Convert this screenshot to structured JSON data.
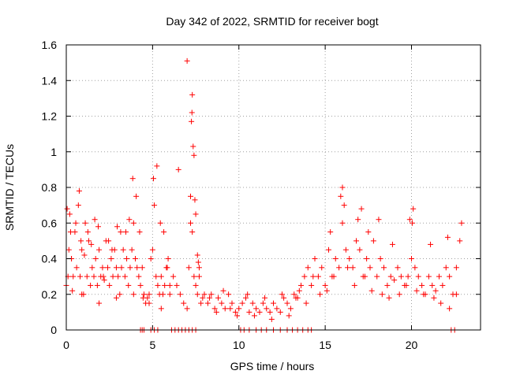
{
  "chart_data": {
    "type": "scatter",
    "title": "Day 342 of 2022, SRMTID for receiver bogt",
    "xlabel": "GPS time / hours",
    "ylabel": "SRMTID / TECUs",
    "xlim": [
      0,
      24
    ],
    "ylim": [
      0,
      1.6
    ],
    "xticks": [
      0,
      5,
      10,
      15,
      20
    ],
    "xtick_labels": [
      "0",
      "5",
      "10",
      "15",
      "20"
    ],
    "yticks": [
      0,
      0.2,
      0.4,
      0.6,
      0.8,
      1.0,
      1.2,
      1.4,
      1.6
    ],
    "ytick_labels": [
      "0",
      "0.2",
      "0.4",
      "0.6",
      "0.8",
      "1",
      "1.2",
      "1.4",
      "1.6"
    ],
    "grid": true,
    "marker": "plus",
    "color": "#ff0000",
    "series": [
      {
        "name": "SRMTID",
        "x": [
          0.0,
          0.1,
          0.2,
          0.3,
          0.4,
          0.5,
          0.6,
          0.7,
          0.8,
          0.9,
          1.0,
          1.1,
          1.2,
          1.3,
          1.4,
          1.5,
          1.6,
          1.7,
          1.8,
          1.9,
          2.0,
          2.1,
          2.2,
          2.3,
          2.4,
          2.5,
          2.6,
          2.7,
          2.8,
          2.9,
          3.0,
          3.1,
          3.2,
          3.3,
          3.4,
          3.5,
          3.6,
          3.7,
          3.8,
          3.9,
          4.0,
          4.1,
          4.2,
          4.3,
          4.4,
          4.5,
          4.6,
          4.7,
          4.8,
          4.9,
          5.0,
          5.1,
          5.2,
          5.3,
          5.4,
          5.5,
          5.6,
          5.7,
          5.8,
          5.9,
          6.0,
          6.2,
          6.4,
          6.6,
          6.8,
          7.0,
          7.1,
          7.2,
          7.3,
          7.4,
          7.5,
          7.6,
          7.7,
          7.8,
          7.9,
          8.0,
          8.2,
          8.4,
          8.6,
          8.8,
          9.0,
          9.2,
          9.4,
          9.6,
          9.8,
          10.0,
          10.2,
          10.4,
          10.6,
          10.8,
          11.0,
          11.2,
          11.4,
          11.6,
          11.8,
          12.0,
          12.2,
          12.4,
          12.6,
          12.8,
          13.0,
          13.2,
          13.4,
          13.6,
          13.8,
          14.0,
          14.2,
          14.4,
          14.6,
          14.8,
          15.0,
          15.2,
          15.4,
          15.6,
          15.8,
          16.0,
          16.2,
          16.4,
          16.6,
          16.8,
          17.0,
          17.2,
          17.4,
          17.6,
          17.8,
          18.0,
          18.2,
          18.4,
          18.6,
          18.8,
          19.0,
          19.2,
          19.4,
          19.6,
          19.8,
          20.0,
          20.2,
          20.4,
          20.6,
          20.8,
          21.0,
          21.2,
          21.4,
          21.6,
          21.8,
          22.0,
          22.2,
          22.4,
          22.6,
          22.8,
          0.05,
          0.15,
          0.25,
          0.35,
          0.55,
          0.75,
          0.85,
          1.05,
          1.25,
          1.45,
          1.65,
          1.85,
          2.15,
          2.45,
          2.65,
          2.95,
          3.15,
          3.45,
          3.65,
          3.85,
          4.05,
          4.25,
          4.45,
          5.05,
          5.25,
          5.45,
          5.65,
          5.85,
          6.5,
          7.0,
          7.2,
          7.25,
          7.28,
          7.3,
          7.35,
          7.4,
          7.45,
          7.5,
          7.6,
          7.65,
          7.7,
          15.3,
          15.9,
          16.0,
          16.1,
          16.9,
          17.1,
          17.5,
          18.1,
          18.9,
          19.9,
          20.05,
          20.1,
          21.1,
          22.1,
          22.9,
          4.3,
          4.4,
          4.5,
          4.9,
          5.1,
          5.3,
          6.1,
          6.3,
          6.5,
          6.7,
          6.9,
          7.1,
          7.3,
          7.5,
          10.1,
          10.3,
          10.6,
          11.0,
          11.3,
          11.6,
          12.0,
          12.4,
          12.8,
          13.1,
          13.4,
          13.7,
          14.0,
          14.2,
          22.3,
          22.5,
          0.3,
          0.9,
          1.9,
          2.9,
          3.9,
          4.8,
          5.5,
          6.0,
          8.3,
          8.7,
          9.1,
          9.5,
          9.9,
          10.5,
          10.9,
          11.5,
          11.9,
          12.5,
          12.9,
          13.3,
          13.5,
          13.9,
          14.3,
          14.7,
          15.1,
          15.5,
          16.3,
          16.7,
          17.3,
          17.7,
          18.3,
          18.7,
          19.3,
          19.7,
          20.3,
          20.7,
          21.3,
          21.7,
          22.2,
          22.6
        ],
        "y": [
          0.25,
          0.3,
          0.65,
          0.4,
          0.3,
          0.55,
          0.35,
          0.7,
          0.3,
          0.45,
          0.2,
          0.6,
          0.3,
          0.5,
          0.25,
          0.35,
          0.3,
          0.4,
          0.25,
          0.45,
          0.3,
          0.35,
          0.28,
          0.5,
          0.35,
          0.25,
          0.4,
          0.3,
          0.45,
          0.35,
          0.3,
          0.2,
          0.35,
          0.45,
          0.3,
          0.4,
          0.25,
          0.35,
          0.45,
          0.6,
          0.4,
          0.35,
          0.3,
          0.25,
          0.35,
          0.2,
          0.15,
          0.18,
          0.2,
          0.4,
          0.45,
          0.7,
          0.3,
          0.25,
          0.2,
          0.3,
          0.2,
          0.25,
          0.35,
          0.4,
          0.2,
          0.3,
          0.25,
          0.2,
          0.15,
          0.12,
          0.35,
          0.75,
          0.55,
          0.3,
          0.25,
          0.2,
          0.35,
          0.15,
          0.18,
          0.2,
          0.15,
          0.2,
          0.12,
          0.18,
          0.15,
          0.12,
          0.2,
          0.15,
          0.1,
          0.12,
          0.15,
          0.18,
          0.1,
          0.15,
          0.12,
          0.1,
          0.15,
          0.12,
          0.1,
          0.15,
          0.12,
          0.1,
          0.18,
          0.15,
          0.12,
          0.2,
          0.18,
          0.25,
          0.3,
          0.35,
          0.25,
          0.4,
          0.3,
          0.35,
          0.25,
          0.45,
          0.3,
          0.4,
          0.35,
          0.6,
          0.45,
          0.4,
          0.35,
          0.5,
          0.45,
          0.3,
          0.4,
          0.35,
          0.5,
          0.3,
          0.4,
          0.35,
          0.25,
          0.3,
          0.28,
          0.35,
          0.3,
          0.25,
          0.3,
          0.4,
          0.35,
          0.3,
          0.25,
          0.2,
          0.3,
          0.25,
          0.22,
          0.3,
          0.25,
          0.35,
          0.3,
          0.2,
          0.35,
          0.5,
          0.68,
          0.45,
          0.55,
          0.22,
          0.6,
          0.78,
          0.5,
          0.42,
          0.55,
          0.48,
          0.62,
          0.58,
          0.3,
          0.5,
          0.45,
          0.58,
          0.55,
          0.55,
          0.62,
          0.85,
          0.75,
          0.55,
          0.18,
          0.85,
          0.92,
          0.6,
          0.55,
          0.35,
          0.9,
          1.51,
          0.6,
          1.17,
          1.22,
          1.32,
          1.03,
          0.98,
          0.73,
          0.65,
          0.42,
          0.38,
          0.3,
          0.55,
          0.75,
          0.8,
          0.7,
          0.62,
          0.68,
          0.55,
          0.62,
          0.48,
          0.62,
          0.6,
          0.68,
          0.48,
          0.52,
          0.6,
          0.0,
          0.0,
          0.0,
          0.0,
          0.0,
          0.0,
          0.0,
          0.0,
          0.0,
          0.0,
          0.0,
          0.0,
          0.0,
          0.0,
          0.0,
          0.0,
          0.0,
          0.0,
          0.0,
          0.0,
          0.0,
          0.0,
          0.0,
          0.0,
          0.0,
          0.0,
          0.0,
          0.0,
          0.0,
          0.0,
          0.4,
          0.2,
          0.15,
          0.18,
          0.2,
          0.15,
          0.12,
          0.25,
          0.18,
          0.1,
          0.22,
          0.12,
          0.08,
          0.2,
          0.08,
          0.18,
          0.06,
          0.2,
          0.08,
          0.18,
          0.22,
          0.15,
          0.3,
          0.2,
          0.22,
          0.3,
          0.35,
          0.25,
          0.3,
          0.22,
          0.2,
          0.18,
          0.2,
          0.25,
          0.22,
          0.2,
          0.18,
          0.15,
          0.12,
          0.2
        ]
      }
    ]
  }
}
